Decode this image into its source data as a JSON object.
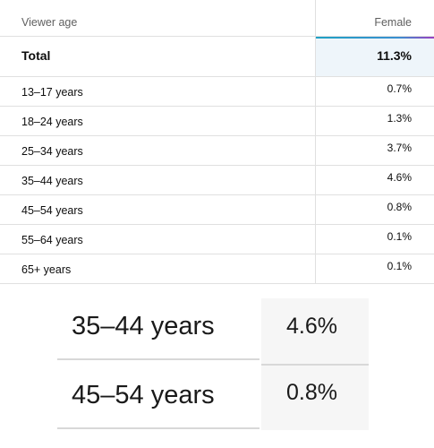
{
  "table": {
    "header": [
      "Viewer age",
      "Female"
    ],
    "total": [
      "Total",
      "11.3%"
    ],
    "rows": [
      [
        "13–17 years",
        "0.7%"
      ],
      [
        "18–24 years",
        "1.3%"
      ],
      [
        "25–34 years",
        "3.7%"
      ],
      [
        "35–44 years",
        "4.6%"
      ],
      [
        "45–54 years",
        "0.8%"
      ],
      [
        "55–64 years",
        "0.1%"
      ],
      [
        "65+ years",
        "0.1%"
      ]
    ]
  }
}
